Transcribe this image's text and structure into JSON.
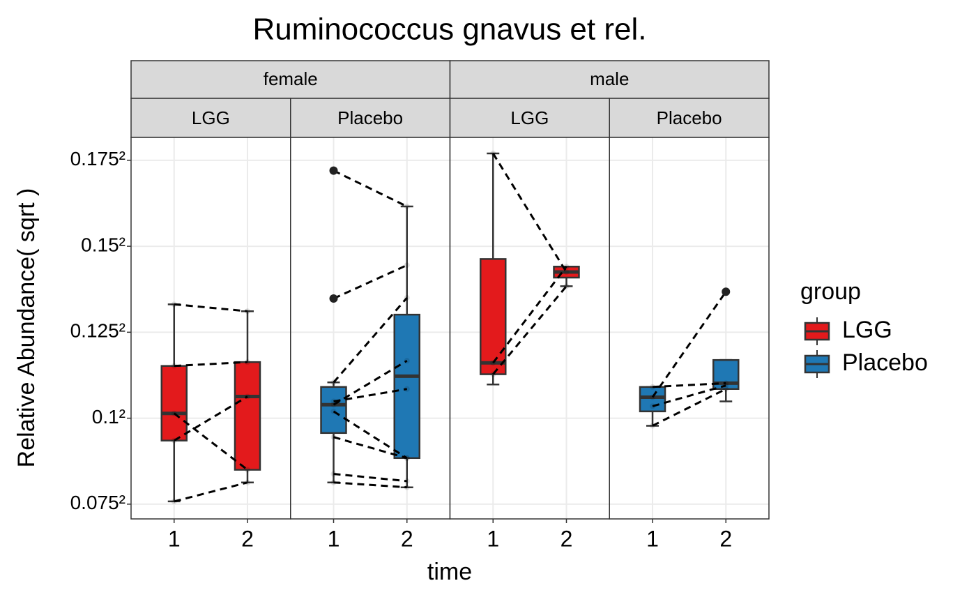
{
  "chart_data": {
    "type": "box",
    "title": "Ruminococcus gnavus et rel.",
    "x_label": "time",
    "y_label": "Relative Abundance( sqrt )",
    "scale": "sqrt",
    "categories": [
      "1",
      "2"
    ],
    "ylim": [
      0.005,
      0.033
    ],
    "yticks": [
      {
        "value": 0.005625,
        "label": "0.075²"
      },
      {
        "value": 0.01,
        "label": "0.1²"
      },
      {
        "value": 0.015625,
        "label": "0.125²"
      },
      {
        "value": 0.0225,
        "label": "0.15²"
      },
      {
        "value": 0.030625,
        "label": "0.175²"
      }
    ],
    "grid": true,
    "legend": {
      "title": "group",
      "position": "right"
    },
    "series": [
      {
        "name": "LGG",
        "color": "#e31a1c"
      },
      {
        "name": "Placebo",
        "color": "#1f78b4"
      }
    ],
    "facets": [
      {
        "label": "female",
        "panels": [
          {
            "label": "LGG",
            "boxes": [
              {
                "min": 0.005746,
                "q1": 0.008742,
                "median": 0.01028,
                "q3": 0.01327,
                "max": 0.01772,
                "outliers": []
              },
              {
                "min": 0.00661,
                "q1": 0.007225,
                "median": 0.0113,
                "q3": 0.01353,
                "max": 0.01719,
                "outliers": []
              }
            ],
            "pairs": [
              [
                0.01772,
                0.01719
              ],
              [
                0.01327,
                0.01353
              ],
              [
                0.01028,
                0.007225
              ],
              [
                0.008742,
                0.0113
              ],
              [
                0.005746,
                0.00661
              ]
            ]
          },
          {
            "label": "Placebo",
            "boxes": [
              {
                "min": 0.00661,
                "q1": 0.009158,
                "median": 0.0108,
                "q3": 0.0119,
                "max": 0.01219,
                "outliers": [
                  0.02958,
                  0.01817
                ]
              },
              {
                "min": 0.006384,
                "q1": 0.007815,
                "median": 0.01259,
                "q3": 0.01693,
                "max": 0.02611,
                "outliers": []
              }
            ],
            "pairs": [
              [
                0.02958,
                0.02611
              ],
              [
                0.01817,
                0.02088
              ],
              [
                0.01219,
                0.01823
              ],
              [
                0.0108,
                0.01362
              ],
              [
                0.011,
                0.01177
              ],
              [
                0.0104,
                0.007815
              ],
              [
                0.00893,
                0.007815
              ],
              [
                0.007022,
                0.006675
              ],
              [
                0.00661,
                0.006384
              ]
            ]
          }
        ]
      },
      {
        "label": "male",
        "panels": [
          {
            "label": "LGG",
            "boxes": [
              {
                "min": 0.01206,
                "q1": 0.01272,
                "median": 0.01348,
                "q3": 0.0214,
                "max": 0.03133,
                "outliers": []
              },
              {
                "min": 0.01915,
                "q1": 0.01985,
                "median": 0.02031,
                "q3": 0.02076,
                "max": 0.02076,
                "outliers": []
              }
            ],
            "pairs": [
              [
                0.03133,
                0.02031
              ],
              [
                0.01348,
                0.02076
              ],
              [
                0.01272,
                0.01915
              ]
            ]
          },
          {
            "label": "Placebo",
            "boxes": [
              {
                "min": 0.009565,
                "q1": 0.0104,
                "median": 0.01126,
                "q3": 0.0119,
                "max": 0.0119,
                "outliers": []
              },
              {
                "min": 0.011,
                "q1": 0.01177,
                "median": 0.01214,
                "q3": 0.01367,
                "max": 0.01367,
                "outliers": [
                  0.01871
                ]
              }
            ],
            "pairs": [
              [
                0.0119,
                0.01214
              ],
              [
                0.01126,
                0.01871
              ],
              [
                0.01071,
                0.01199
              ],
              [
                0.009565,
                0.01177
              ]
            ]
          }
        ]
      }
    ]
  }
}
